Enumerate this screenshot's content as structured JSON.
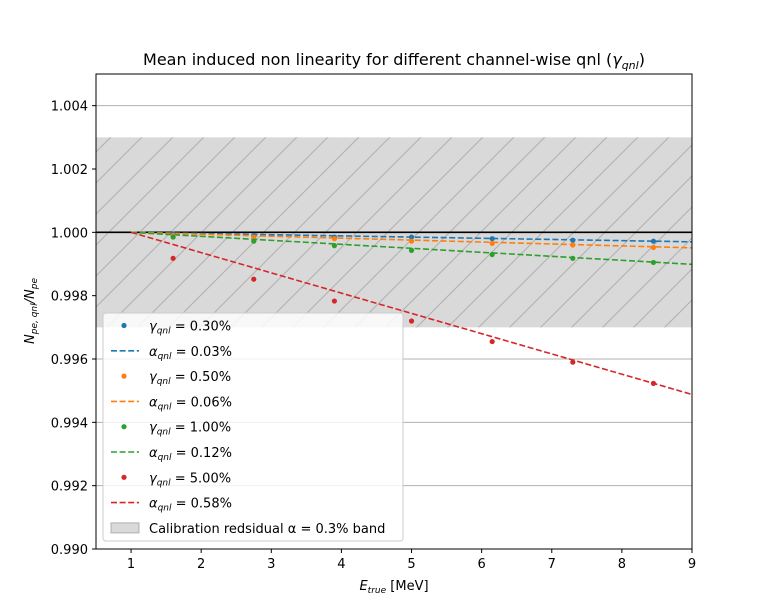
{
  "chart_data": {
    "type": "scatter",
    "title": "Mean induced non linearity for different channel-wise qnl (γ_qnl)",
    "title_parts": {
      "main": "Mean induced non linearity for different channel-wise qnl (",
      "gamma": "γ",
      "sub": "qnl",
      "close": ")"
    },
    "xlabel": "E_true [MeV]",
    "xlabel_parts": {
      "var": "E",
      "sub": "true",
      "unit": " [MeV]"
    },
    "ylabel": "N_pe,qnl/N_pe",
    "ylabel_parts": {
      "var1": "N",
      "sub1": "pe, qnl",
      "slash": "/",
      "var2": "N",
      "sub2": "pe"
    },
    "xlim": [
      0.5,
      9
    ],
    "ylim": [
      0.99,
      1.005
    ],
    "x_ticks": [
      1,
      2,
      3,
      4,
      5,
      6,
      7,
      8,
      9
    ],
    "y_ticks": [
      0.99,
      0.992,
      0.994,
      0.996,
      0.998,
      1.0,
      1.002,
      1.004
    ],
    "y_tick_labels": [
      "0.990",
      "0.992",
      "0.994",
      "0.996",
      "0.998",
      "1.000",
      "1.002",
      "1.004"
    ],
    "grid": "horizontal",
    "reference_line": 1.0,
    "band": {
      "ymin": 0.997,
      "ymax": 1.003,
      "label": "Calibration redsidual α = 0.3% band",
      "color": "#d9d9d9",
      "hatch": "/"
    },
    "legend_position": "lower-left",
    "x": [
      1.6,
      2.75,
      3.9,
      5.0,
      6.15,
      7.3,
      8.45
    ],
    "series": [
      {
        "name": "γ_qnl = 0.30%",
        "legend_sym": "γ",
        "legend_sub": "qnl",
        "legend_val": " = 0.30%",
        "color": "#1f77b4",
        "points": [
          0.99995,
          0.9999,
          0.99985,
          0.99985,
          0.9998,
          0.99975,
          0.99972
        ],
        "fit_name": "α_qnl = 0.03%",
        "fit_sym": "α",
        "fit_val": " = 0.03%",
        "fit": [
          [
            1,
            1.0
          ],
          [
            9,
            0.9997
          ]
        ]
      },
      {
        "name": "γ_qnl = 0.50%",
        "legend_sym": "γ",
        "legend_sub": "qnl",
        "legend_val": " = 0.50%",
        "color": "#ff7f0e",
        "points": [
          0.9999,
          0.99985,
          0.9998,
          0.99972,
          0.99965,
          0.9996,
          0.99952
        ],
        "fit_name": "α_qnl = 0.06%",
        "fit_sym": "α",
        "fit_val": " = 0.06%",
        "fit": [
          [
            1,
            1.0
          ],
          [
            9,
            0.99951
          ]
        ]
      },
      {
        "name": "γ_qnl = 1.00%",
        "legend_sym": "γ",
        "legend_sub": "qnl",
        "legend_val": " = 1.00%",
        "color": "#2ca02c",
        "points": [
          0.99985,
          0.99972,
          0.99958,
          0.99943,
          0.9993,
          0.99918,
          0.99905
        ],
        "fit_name": "α_qnl = 0.12%",
        "fit_sym": "α",
        "fit_val": " = 0.12%",
        "fit": [
          [
            1,
            1.0
          ],
          [
            9,
            0.99899
          ]
        ]
      },
      {
        "name": "γ_qnl = 5.00%",
        "legend_sym": "γ",
        "legend_sub": "qnl",
        "legend_val": " = 5.00%",
        "color": "#d62728",
        "points": [
          0.99918,
          0.99852,
          0.99783,
          0.9972,
          0.99655,
          0.9959,
          0.99523
        ],
        "fit_name": "α_qnl = 0.58%",
        "fit_sym": "α",
        "fit_val": " = 0.58%",
        "fit": [
          [
            1,
            1.0
          ],
          [
            9,
            0.99488
          ]
        ]
      }
    ]
  }
}
